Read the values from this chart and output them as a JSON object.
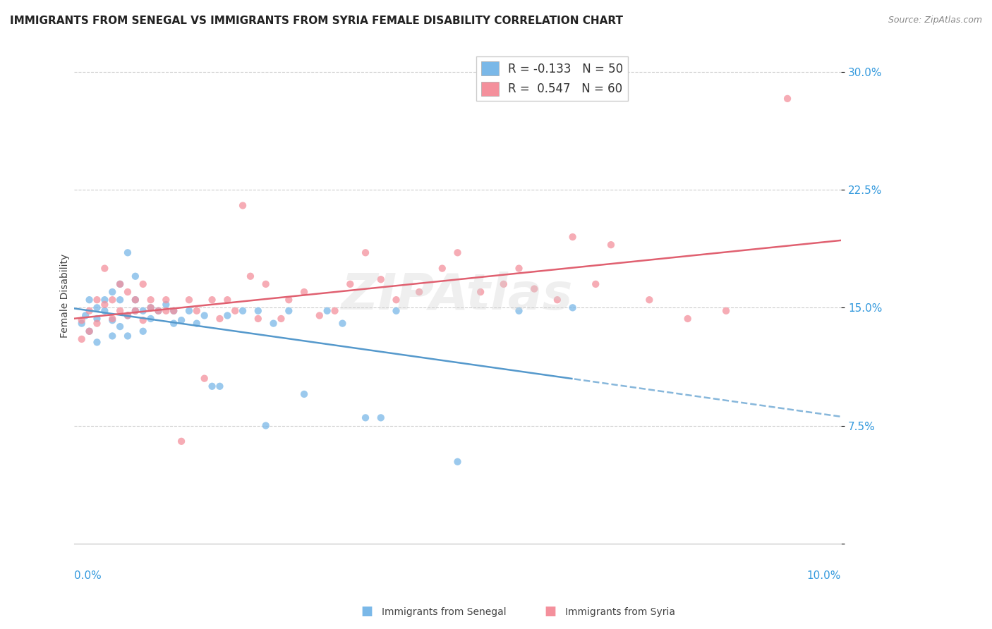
{
  "title": "IMMIGRANTS FROM SENEGAL VS IMMIGRANTS FROM SYRIA FEMALE DISABILITY CORRELATION CHART",
  "source": "Source: ZipAtlas.com",
  "ylabel": "Female Disability",
  "yticks": [
    0.0,
    0.075,
    0.15,
    0.225,
    0.3
  ],
  "ytick_labels": [
    "",
    "7.5%",
    "15.0%",
    "22.5%",
    "30.0%"
  ],
  "xlim": [
    0.0,
    0.1
  ],
  "ylim": [
    0.0,
    0.315
  ],
  "senegal_color": "#7ab8e8",
  "syria_color": "#f4909c",
  "senegal_line_color": "#5599cc",
  "syria_line_color": "#e06070",
  "legend_label1": "R = -0.133   N = 50",
  "legend_label2": "R =  0.547   N = 60",
  "watermark": "ZIPAtlas",
  "bottom_legend_senegal": "Immigrants from Senegal",
  "bottom_legend_syria": "Immigrants from Syria",
  "title_fontsize": 11,
  "axis_label_fontsize": 10,
  "tick_fontsize": 11,
  "senegal_x": [
    0.001,
    0.0015,
    0.002,
    0.002,
    0.003,
    0.003,
    0.003,
    0.004,
    0.004,
    0.005,
    0.005,
    0.005,
    0.006,
    0.006,
    0.006,
    0.007,
    0.007,
    0.007,
    0.008,
    0.008,
    0.008,
    0.009,
    0.009,
    0.01,
    0.01,
    0.011,
    0.012,
    0.013,
    0.013,
    0.014,
    0.015,
    0.016,
    0.017,
    0.018,
    0.019,
    0.02,
    0.022,
    0.024,
    0.025,
    0.026,
    0.028,
    0.03,
    0.033,
    0.035,
    0.038,
    0.04,
    0.042,
    0.05,
    0.058,
    0.065
  ],
  "senegal_y": [
    0.14,
    0.145,
    0.135,
    0.155,
    0.15,
    0.143,
    0.128,
    0.155,
    0.148,
    0.16,
    0.142,
    0.132,
    0.155,
    0.165,
    0.138,
    0.185,
    0.145,
    0.132,
    0.17,
    0.155,
    0.148,
    0.148,
    0.135,
    0.15,
    0.143,
    0.148,
    0.152,
    0.148,
    0.14,
    0.142,
    0.148,
    0.14,
    0.145,
    0.1,
    0.1,
    0.145,
    0.148,
    0.148,
    0.075,
    0.14,
    0.148,
    0.095,
    0.148,
    0.14,
    0.08,
    0.08,
    0.148,
    0.052,
    0.148,
    0.15
  ],
  "syria_x": [
    0.001,
    0.001,
    0.002,
    0.002,
    0.003,
    0.003,
    0.004,
    0.004,
    0.005,
    0.005,
    0.006,
    0.006,
    0.007,
    0.007,
    0.008,
    0.008,
    0.009,
    0.009,
    0.01,
    0.01,
    0.011,
    0.012,
    0.012,
    0.013,
    0.014,
    0.015,
    0.016,
    0.017,
    0.018,
    0.019,
    0.02,
    0.021,
    0.022,
    0.023,
    0.024,
    0.025,
    0.027,
    0.028,
    0.03,
    0.032,
    0.034,
    0.036,
    0.038,
    0.04,
    0.042,
    0.045,
    0.048,
    0.05,
    0.053,
    0.056,
    0.058,
    0.06,
    0.063,
    0.065,
    0.068,
    0.07,
    0.075,
    0.08,
    0.085,
    0.093
  ],
  "syria_y": [
    0.13,
    0.142,
    0.148,
    0.135,
    0.155,
    0.14,
    0.175,
    0.152,
    0.155,
    0.143,
    0.165,
    0.148,
    0.16,
    0.145,
    0.155,
    0.148,
    0.165,
    0.142,
    0.155,
    0.15,
    0.148,
    0.155,
    0.148,
    0.148,
    0.065,
    0.155,
    0.148,
    0.105,
    0.155,
    0.143,
    0.155,
    0.148,
    0.215,
    0.17,
    0.143,
    0.165,
    0.143,
    0.155,
    0.16,
    0.145,
    0.148,
    0.165,
    0.185,
    0.168,
    0.155,
    0.16,
    0.175,
    0.185,
    0.16,
    0.165,
    0.175,
    0.162,
    0.155,
    0.195,
    0.165,
    0.19,
    0.155,
    0.143,
    0.148,
    0.283
  ]
}
